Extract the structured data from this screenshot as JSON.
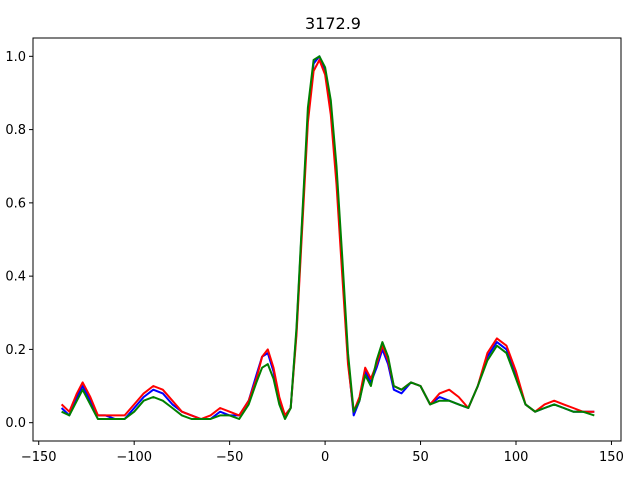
{
  "chart_data": {
    "type": "line",
    "title": "3172.9",
    "xlabel": "",
    "ylabel": "",
    "xlim": [
      -153,
      155
    ],
    "ylim": [
      -0.05,
      1.05
    ],
    "xticks": [
      -150,
      -100,
      -50,
      0,
      50,
      100,
      150
    ],
    "xtick_labels": [
      "−150",
      "−100",
      "−50",
      "0",
      "50",
      "100",
      "150"
    ],
    "yticks": [
      0.0,
      0.2,
      0.4,
      0.6,
      0.8,
      1.0
    ],
    "ytick_labels": [
      "0.0",
      "0.2",
      "0.4",
      "0.6",
      "0.8",
      "1.0"
    ],
    "grid": false,
    "legend": "none",
    "series": [
      {
        "color": "#0000ff",
        "x": [
          -138,
          -134,
          -130,
          -127,
          -123,
          -119,
          -115,
          -110,
          -105,
          -100,
          -95,
          -90,
          -85,
          -80,
          -75,
          -70,
          -65,
          -60,
          -55,
          -50,
          -45,
          -40,
          -36,
          -33,
          -30,
          -27,
          -24,
          -21,
          -18,
          -15,
          -12,
          -9,
          -6,
          -3,
          0,
          3,
          6,
          9,
          12,
          15,
          18,
          21,
          24,
          27,
          30,
          33,
          36,
          40,
          45,
          50,
          55,
          60,
          65,
          70,
          75,
          80,
          85,
          90,
          95,
          100,
          105,
          110,
          115,
          120,
          125,
          130,
          135,
          141
        ],
        "y": [
          0.04,
          0.02,
          0.07,
          0.1,
          0.06,
          0.02,
          0.02,
          0.01,
          0.01,
          0.04,
          0.07,
          0.09,
          0.08,
          0.05,
          0.03,
          0.02,
          0.01,
          0.01,
          0.03,
          0.02,
          0.02,
          0.06,
          0.13,
          0.18,
          0.19,
          0.14,
          0.06,
          0.02,
          0.04,
          0.25,
          0.55,
          0.84,
          0.98,
          1.0,
          0.96,
          0.86,
          0.67,
          0.42,
          0.17,
          0.02,
          0.06,
          0.14,
          0.11,
          0.15,
          0.2,
          0.16,
          0.09,
          0.08,
          0.11,
          0.1,
          0.05,
          0.07,
          0.06,
          0.05,
          0.04,
          0.1,
          0.18,
          0.22,
          0.2,
          0.13,
          0.05,
          0.03,
          0.04,
          0.05,
          0.04,
          0.03,
          0.03,
          0.03
        ]
      },
      {
        "color": "#ff0000",
        "x": [
          -138,
          -134,
          -130,
          -127,
          -123,
          -119,
          -115,
          -110,
          -105,
          -100,
          -95,
          -90,
          -85,
          -80,
          -75,
          -70,
          -65,
          -60,
          -55,
          -50,
          -45,
          -40,
          -36,
          -33,
          -30,
          -27,
          -24,
          -21,
          -18,
          -15,
          -12,
          -9,
          -6,
          -3,
          0,
          3,
          6,
          9,
          12,
          15,
          18,
          21,
          24,
          27,
          30,
          33,
          36,
          40,
          45,
          50,
          55,
          60,
          65,
          70,
          75,
          80,
          85,
          90,
          95,
          100,
          105,
          110,
          115,
          120,
          125,
          130,
          135,
          141
        ],
        "y": [
          0.05,
          0.03,
          0.08,
          0.11,
          0.07,
          0.02,
          0.02,
          0.02,
          0.02,
          0.05,
          0.08,
          0.1,
          0.09,
          0.06,
          0.03,
          0.02,
          0.01,
          0.02,
          0.04,
          0.03,
          0.02,
          0.06,
          0.12,
          0.18,
          0.2,
          0.15,
          0.07,
          0.02,
          0.04,
          0.24,
          0.53,
          0.82,
          0.96,
          0.99,
          0.95,
          0.84,
          0.65,
          0.4,
          0.16,
          0.03,
          0.07,
          0.15,
          0.12,
          0.16,
          0.21,
          0.17,
          0.1,
          0.09,
          0.11,
          0.1,
          0.05,
          0.08,
          0.09,
          0.07,
          0.04,
          0.1,
          0.19,
          0.23,
          0.21,
          0.14,
          0.05,
          0.03,
          0.05,
          0.06,
          0.05,
          0.04,
          0.03,
          0.03
        ]
      },
      {
        "color": "#008000",
        "x": [
          -138,
          -134,
          -130,
          -127,
          -123,
          -119,
          -115,
          -110,
          -105,
          -100,
          -95,
          -90,
          -85,
          -80,
          -75,
          -70,
          -65,
          -60,
          -55,
          -50,
          -45,
          -40,
          -36,
          -33,
          -30,
          -27,
          -24,
          -21,
          -18,
          -15,
          -12,
          -9,
          -6,
          -3,
          0,
          3,
          6,
          9,
          12,
          15,
          18,
          21,
          24,
          27,
          30,
          33,
          36,
          40,
          45,
          50,
          55,
          60,
          65,
          70,
          75,
          80,
          85,
          90,
          95,
          100,
          105,
          110,
          115,
          120,
          125,
          130,
          135,
          141
        ],
        "y": [
          0.03,
          0.02,
          0.06,
          0.09,
          0.05,
          0.01,
          0.01,
          0.01,
          0.01,
          0.03,
          0.06,
          0.07,
          0.06,
          0.04,
          0.02,
          0.01,
          0.01,
          0.01,
          0.02,
          0.02,
          0.01,
          0.05,
          0.11,
          0.15,
          0.16,
          0.12,
          0.05,
          0.01,
          0.04,
          0.26,
          0.56,
          0.86,
          0.99,
          1.0,
          0.97,
          0.88,
          0.7,
          0.45,
          0.19,
          0.03,
          0.06,
          0.13,
          0.1,
          0.17,
          0.22,
          0.18,
          0.1,
          0.09,
          0.11,
          0.1,
          0.05,
          0.06,
          0.06,
          0.05,
          0.04,
          0.1,
          0.17,
          0.21,
          0.19,
          0.12,
          0.05,
          0.03,
          0.04,
          0.05,
          0.04,
          0.03,
          0.03,
          0.02
        ]
      }
    ]
  }
}
